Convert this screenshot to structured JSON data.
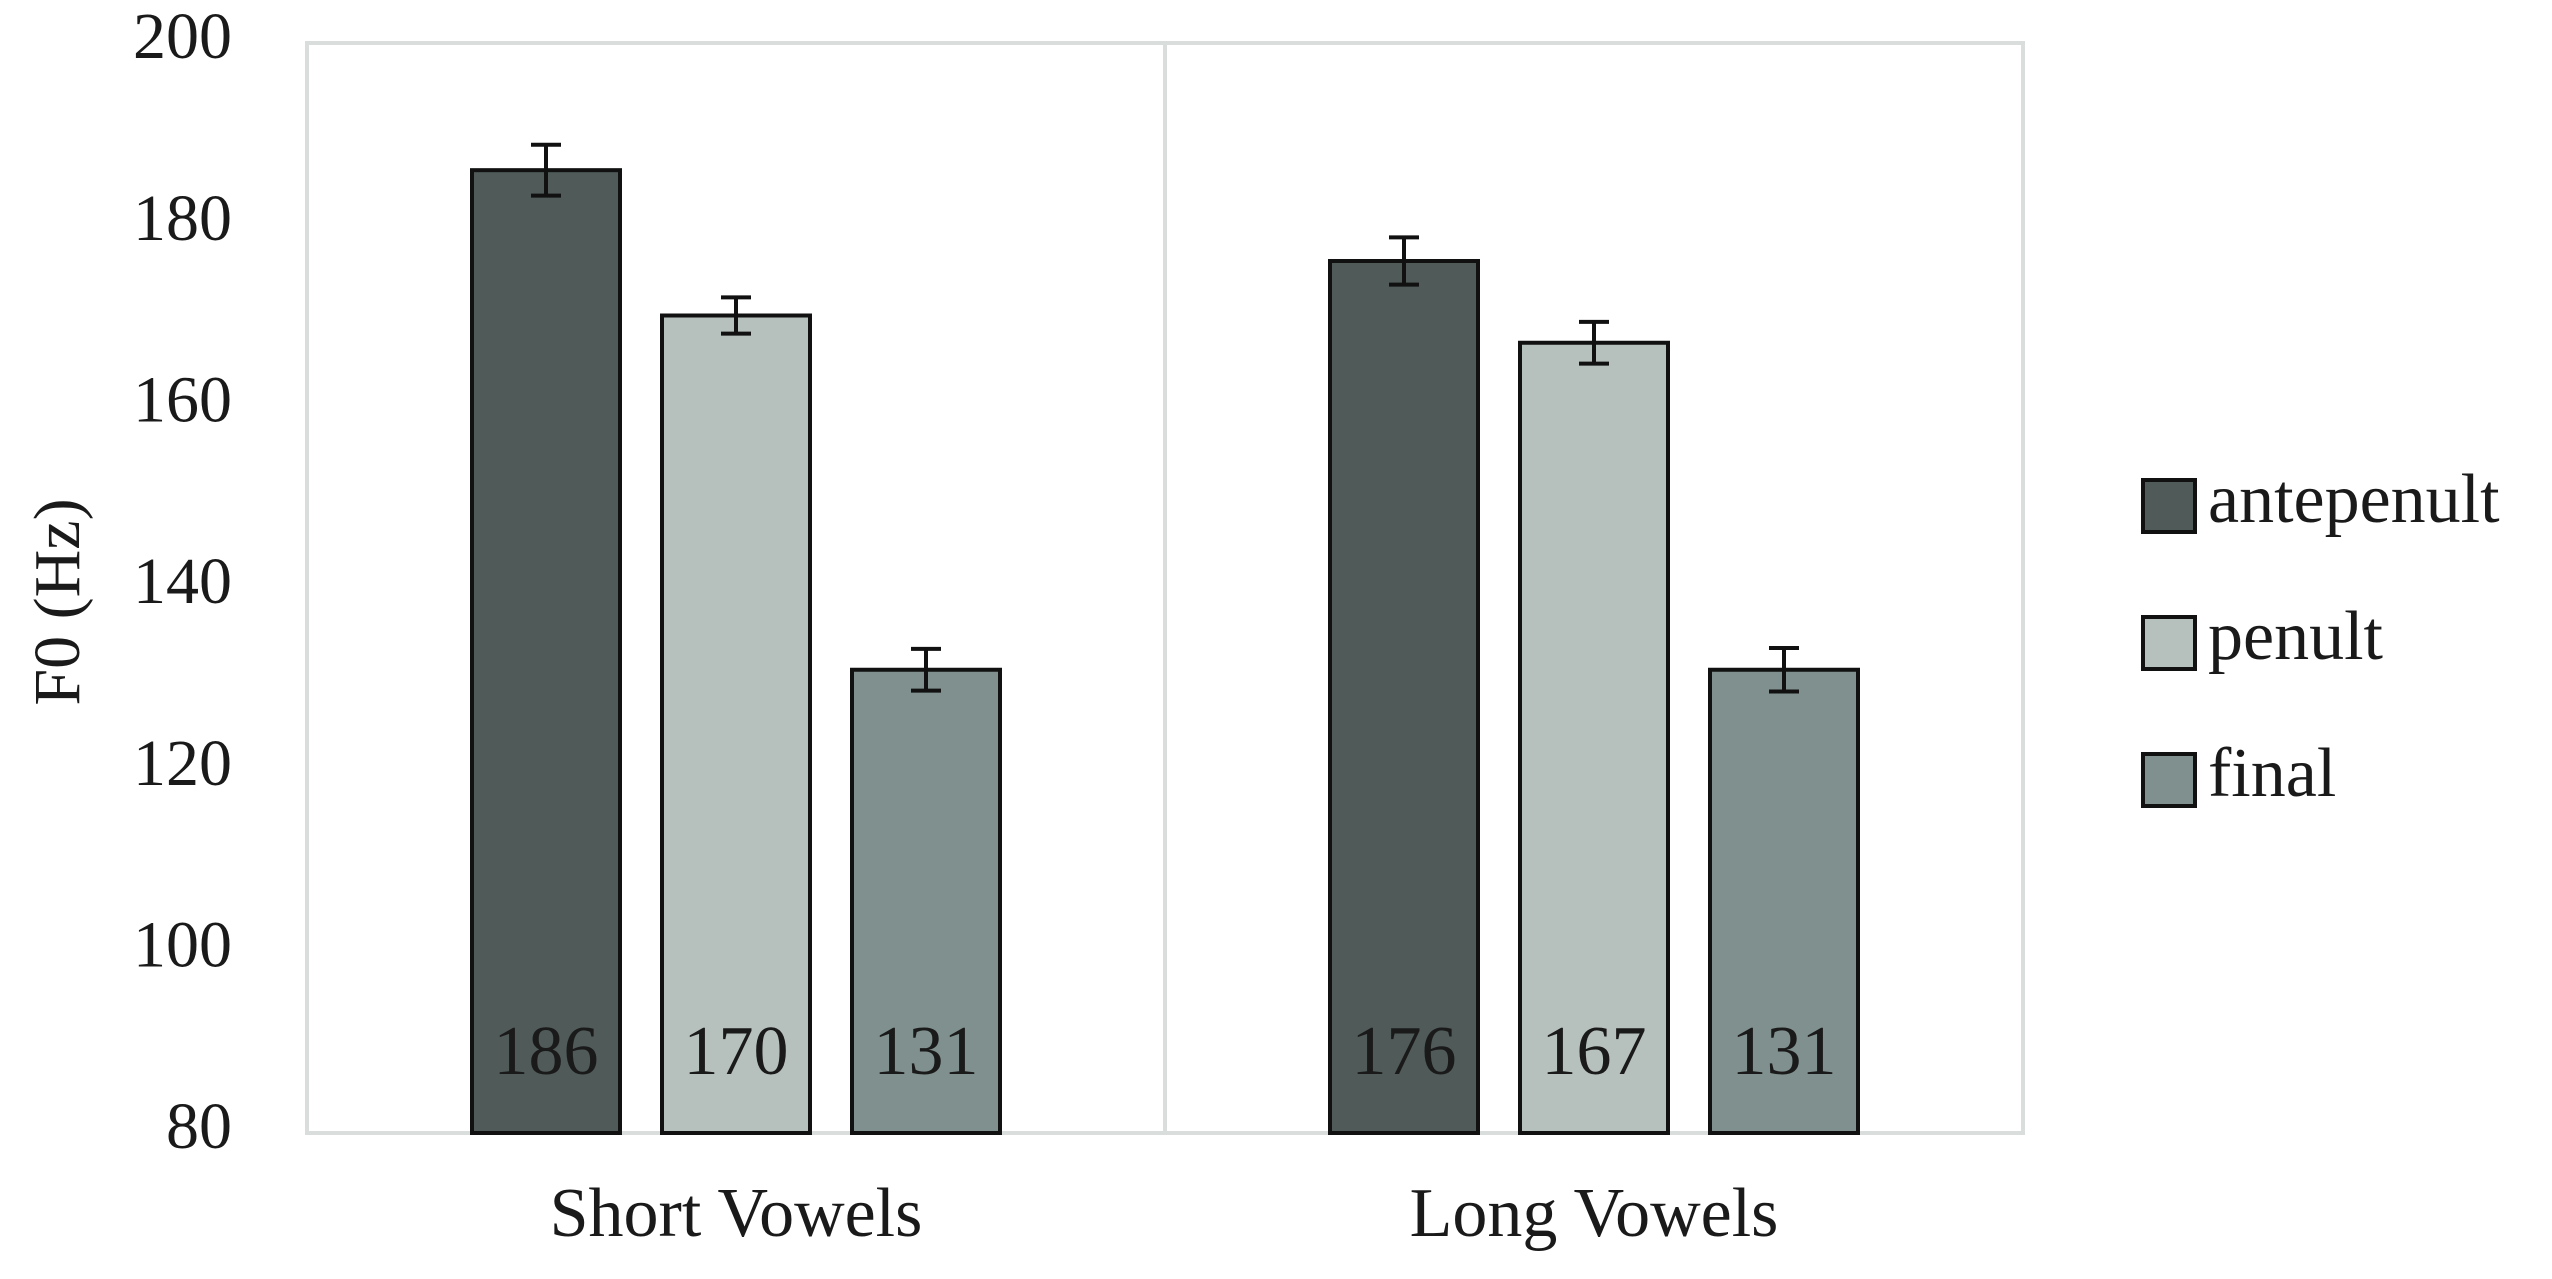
{
  "chart_data": {
    "type": "bar",
    "title": "",
    "xlabel": "",
    "ylabel": "F0 (Hz)",
    "ylim": [
      80,
      200
    ],
    "yticks": [
      80,
      100,
      120,
      140,
      160,
      180,
      200
    ],
    "categories": [
      "Short Vowels",
      "Long Vowels"
    ],
    "series": [
      {
        "name": "antepenult",
        "values": [
          186,
          176
        ],
        "data_labels": [
          "186",
          "176"
        ],
        "error": [
          2.8,
          2.6
        ],
        "color": "#4f5a59"
      },
      {
        "name": "penult",
        "values": [
          170,
          167
        ],
        "data_labels": [
          "170",
          "167"
        ],
        "error": [
          2.0,
          2.3
        ],
        "color": "#b6c1be"
      },
      {
        "name": "final",
        "values": [
          131,
          131
        ],
        "data_labels": [
          "131",
          "131"
        ],
        "error": [
          2.3,
          2.4
        ],
        "color": "#7f908e"
      }
    ],
    "grid": false,
    "category_separators": true,
    "legend_position": "right"
  }
}
